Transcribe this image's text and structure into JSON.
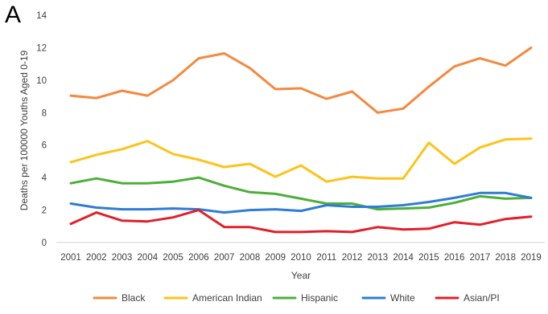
{
  "panel_label": "A",
  "chart_data": {
    "type": "line",
    "title": "",
    "xlabel": "Year",
    "ylabel": "Deaths per 100000 Youths Aged 0-19",
    "ylim": [
      0,
      14
    ],
    "yticks": [
      0,
      2,
      4,
      6,
      8,
      10,
      12,
      14
    ],
    "grid": false,
    "legend_position": "bottom",
    "x": [
      "2001",
      "2002",
      "2003",
      "2004",
      "2005",
      "2006",
      "2007",
      "2008",
      "2009",
      "2010",
      "2011",
      "2012",
      "2013",
      "2014",
      "2015",
      "2016",
      "2017",
      "2018",
      "2019"
    ],
    "series": [
      {
        "name": "Black",
        "color": "#f4893f",
        "values": [
          9.05,
          8.9,
          9.35,
          9.05,
          10.0,
          11.35,
          11.65,
          10.75,
          9.45,
          9.5,
          8.85,
          9.3,
          8.0,
          8.25,
          9.6,
          10.85,
          11.35,
          10.9,
          12.0
        ]
      },
      {
        "name": "American Indian",
        "color": "#fcc419",
        "values": [
          4.95,
          5.4,
          5.75,
          6.25,
          5.45,
          5.1,
          4.65,
          4.85,
          4.05,
          4.75,
          3.75,
          4.05,
          3.95,
          3.95,
          6.15,
          4.85,
          5.85,
          6.35,
          6.4
        ]
      },
      {
        "name": "Hispanic",
        "color": "#4caf3a",
        "values": [
          3.65,
          3.95,
          3.65,
          3.65,
          3.75,
          4.0,
          3.5,
          3.1,
          3.0,
          2.7,
          2.4,
          2.4,
          2.05,
          2.1,
          2.15,
          2.45,
          2.85,
          2.7,
          2.75
        ]
      },
      {
        "name": "White",
        "color": "#2e7cd6",
        "values": [
          2.4,
          2.15,
          2.05,
          2.05,
          2.1,
          2.05,
          1.85,
          2.0,
          2.05,
          1.95,
          2.3,
          2.2,
          2.2,
          2.3,
          2.5,
          2.75,
          3.05,
          3.05,
          2.75
        ]
      },
      {
        "name": "Asian/PI",
        "color": "#e0202a",
        "values": [
          1.15,
          1.85,
          1.35,
          1.3,
          1.55,
          2.0,
          0.95,
          0.95,
          0.65,
          0.65,
          0.7,
          0.65,
          0.95,
          0.8,
          0.85,
          1.25,
          1.1,
          1.45,
          1.6
        ]
      }
    ]
  }
}
